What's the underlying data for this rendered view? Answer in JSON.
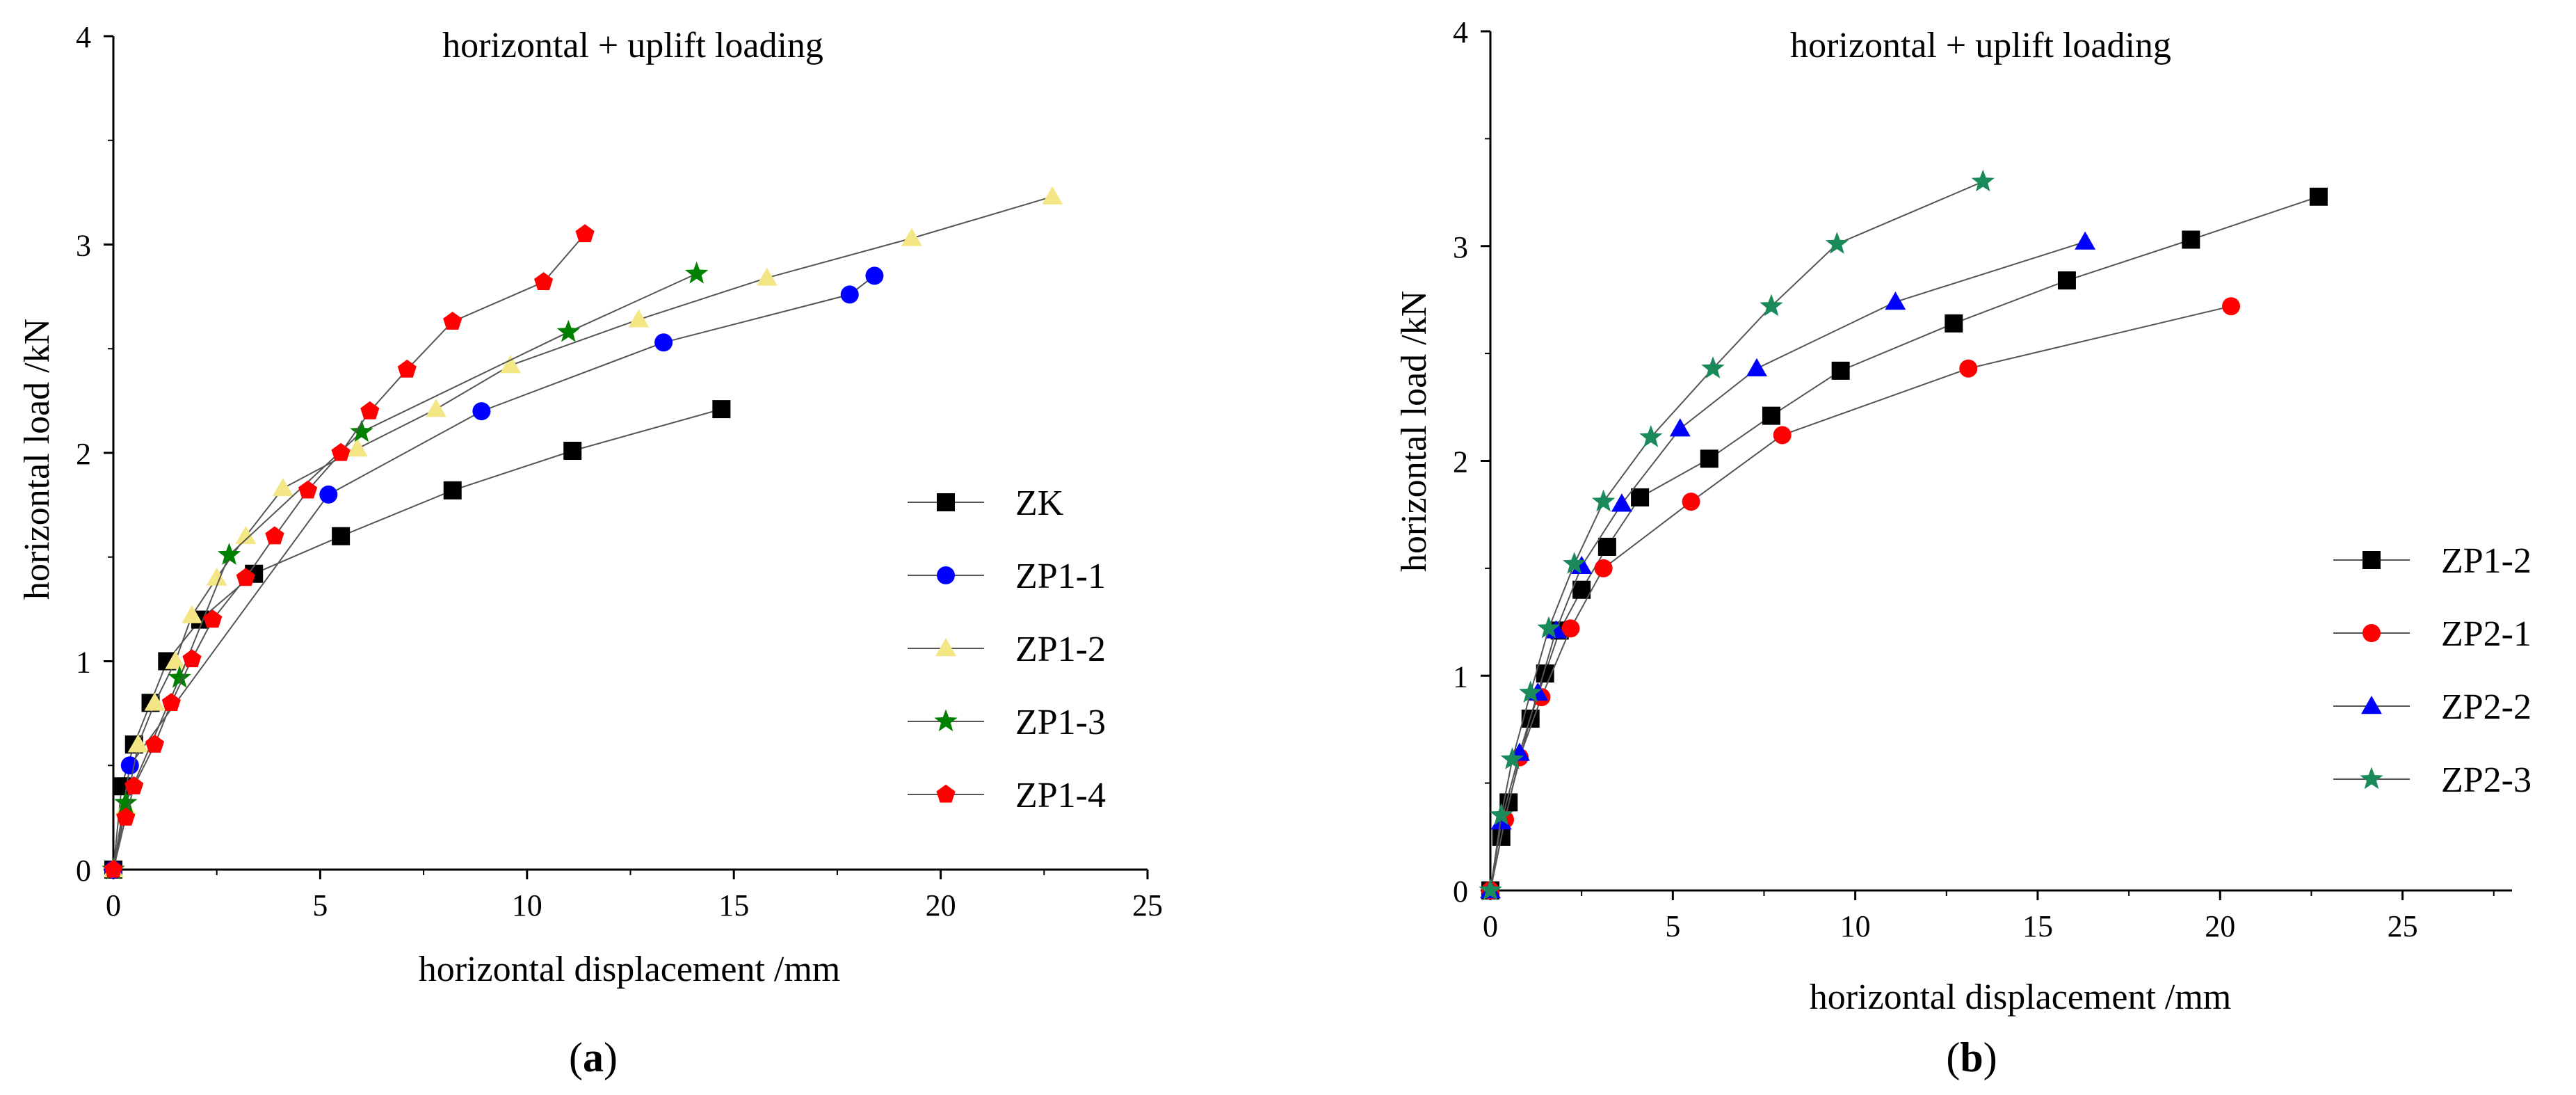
{
  "chart_data": [
    {
      "panel": "a",
      "type": "line",
      "title": "horizontal + uplift loading",
      "xlabel": "horizontal displacement /mm",
      "ylabel": "horizontal load /kN",
      "xlim": [
        0,
        25
      ],
      "ylim": [
        0,
        4
      ],
      "xticks": [
        0,
        5,
        10,
        15,
        20,
        25
      ],
      "yticks": [
        0,
        1,
        2,
        3,
        4
      ],
      "legend_position": "right",
      "series": [
        {
          "name": "ZK",
          "marker": "square",
          "color": "#000000",
          "x": [
            0,
            0.2,
            0.5,
            0.9,
            1.3,
            2.1,
            3.4,
            5.5,
            8.2,
            11.1,
            14.7
          ],
          "y": [
            0,
            0.4,
            0.6,
            0.8,
            1.0,
            1.2,
            1.42,
            1.6,
            1.82,
            2.01,
            2.21
          ]
        },
        {
          "name": "ZP1-1",
          "marker": "circle",
          "color": "#0000ff",
          "x": [
            0,
            0.4,
            5.2,
            8.9,
            13.3,
            17.8,
            18.4
          ],
          "y": [
            0,
            0.5,
            1.8,
            2.2,
            2.53,
            2.76,
            2.85
          ]
        },
        {
          "name": "ZP1-2",
          "marker": "triangle",
          "color": "#f5e685",
          "x": [
            0,
            0.3,
            0.6,
            1.0,
            1.5,
            1.9,
            2.5,
            3.2,
            4.1,
            5.9,
            7.8,
            9.6,
            12.7,
            15.8,
            19.3,
            22.7
          ],
          "y": [
            0,
            0.3,
            0.6,
            0.8,
            1.0,
            1.22,
            1.4,
            1.6,
            1.83,
            2.02,
            2.21,
            2.42,
            2.64,
            2.84,
            3.03,
            3.23
          ]
        },
        {
          "name": "ZP1-3",
          "marker": "star",
          "color": "#008000",
          "x": [
            0,
            0.3,
            1.6,
            2.8,
            6.0,
            11.0,
            14.1
          ],
          "y": [
            0,
            0.32,
            0.92,
            1.51,
            2.1,
            2.58,
            2.86
          ]
        },
        {
          "name": "ZP1-4",
          "marker": "pentagon",
          "color": "#ff0000",
          "x": [
            0,
            0.3,
            0.5,
            1.0,
            1.4,
            1.9,
            2.4,
            3.2,
            3.9,
            4.7,
            5.5,
            6.2,
            7.1,
            8.2,
            10.4,
            11.4
          ],
          "y": [
            0,
            0.25,
            0.4,
            0.6,
            0.8,
            1.01,
            1.2,
            1.4,
            1.6,
            1.82,
            2.0,
            2.2,
            2.4,
            2.63,
            2.82,
            3.05
          ]
        }
      ]
    },
    {
      "panel": "b",
      "type": "line",
      "title": "horizontal + uplift loading",
      "xlabel": "horizontal displacement /mm",
      "ylabel": "horizontal load /kN",
      "xlim": [
        0,
        28
      ],
      "ylim": [
        0,
        4
      ],
      "xticks": [
        0,
        5,
        10,
        15,
        20,
        25
      ],
      "yticks": [
        0,
        1,
        2,
        3,
        4
      ],
      "legend_position": "bottom-right",
      "series": [
        {
          "name": "ZP1-2",
          "marker": "square",
          "color": "#000000",
          "x": [
            0,
            0.3,
            0.5,
            1.1,
            1.5,
            1.9,
            2.5,
            3.2,
            4.1,
            6.0,
            7.7,
            9.6,
            12.7,
            15.8,
            19.2,
            22.7
          ],
          "y": [
            0,
            0.25,
            0.41,
            0.8,
            1.01,
            1.21,
            1.4,
            1.6,
            1.83,
            2.01,
            2.21,
            2.42,
            2.64,
            2.84,
            3.03,
            3.23
          ]
        },
        {
          "name": "ZP2-1",
          "marker": "circle",
          "color": "#ff0000",
          "x": [
            0,
            0.4,
            0.8,
            1.4,
            2.2,
            3.1,
            5.5,
            8.0,
            13.1,
            20.3
          ],
          "y": [
            0,
            0.33,
            0.62,
            0.9,
            1.22,
            1.5,
            1.81,
            2.12,
            2.43,
            2.72
          ]
        },
        {
          "name": "ZP2-2",
          "marker": "triangle",
          "color": "#0000ff",
          "x": [
            0,
            0.3,
            0.8,
            1.3,
            1.8,
            2.5,
            3.6,
            5.2,
            7.3,
            11.1,
            16.3
          ],
          "y": [
            0,
            0.32,
            0.64,
            0.92,
            1.21,
            1.51,
            1.8,
            2.15,
            2.43,
            2.74,
            3.02
          ]
        },
        {
          "name": "ZP2-3",
          "marker": "star",
          "color": "#1a8a5a",
          "x": [
            0,
            0.3,
            0.6,
            1.1,
            1.6,
            2.3,
            3.1,
            4.4,
            6.1,
            7.7,
            9.5,
            13.5
          ],
          "y": [
            0,
            0.35,
            0.61,
            0.92,
            1.22,
            1.52,
            1.81,
            2.11,
            2.43,
            2.72,
            3.01,
            3.3
          ]
        }
      ]
    }
  ],
  "panel_labels": [
    "(a)",
    "(b)"
  ],
  "line_color": "#555555"
}
